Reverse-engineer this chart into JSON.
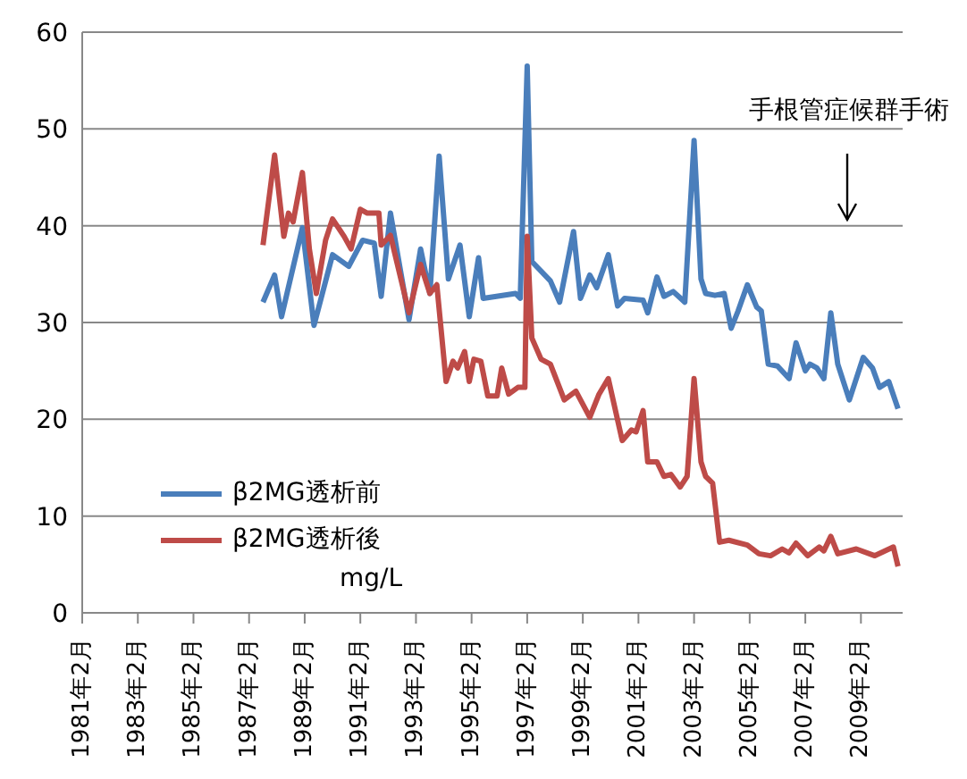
{
  "chart_data": {
    "type": "line",
    "xlim": [
      "1981-02",
      "2010-08"
    ],
    "xticks": [
      {
        "value": "1981-02",
        "label": "1981年2月"
      },
      {
        "value": "1983-02",
        "label": "1983年2月"
      },
      {
        "value": "1985-02",
        "label": "1985年2月"
      },
      {
        "value": "1987-02",
        "label": "1987年2月"
      },
      {
        "value": "1989-02",
        "label": "1989年2月"
      },
      {
        "value": "1991-02",
        "label": "1991年2月"
      },
      {
        "value": "1993-02",
        "label": "1993年2月"
      },
      {
        "value": "1995-02",
        "label": "1995年2月"
      },
      {
        "value": "1997-02",
        "label": "1997年2月"
      },
      {
        "value": "1999-02",
        "label": "1999年2月"
      },
      {
        "value": "2001-02",
        "label": "2001年2月"
      },
      {
        "value": "2003-02",
        "label": "2003年2月"
      },
      {
        "value": "2005-02",
        "label": "2005年2月"
      },
      {
        "value": "2007-02",
        "label": "2007年2月"
      },
      {
        "value": "2009-02",
        "label": "2009年2月"
      }
    ],
    "ylim": [
      0,
      60
    ],
    "yticks": [
      0,
      10,
      20,
      30,
      40,
      50,
      60
    ],
    "grid": "y",
    "legend": "bottom left",
    "marker": "none",
    "line_style": "solid",
    "annotations": [
      "手根管症候群手術",
      "mg/L"
    ],
    "series": [
      {
        "name": "β2MG透析前",
        "color": "#4a7ebb",
        "x": [
          "1987-08",
          "1988-01",
          "1988-04",
          "1989-01",
          "1989-06",
          "1990-02",
          "1990-09",
          "1991-03",
          "1991-08",
          "1991-11",
          "1992-03",
          "1992-11",
          "1993-04",
          "1993-08",
          "1993-12",
          "1994-04",
          "1994-09",
          "1995-01",
          "1995-05",
          "1995-07",
          "1996-09",
          "1996-11",
          "1997-02",
          "1997-04",
          "1997-12",
          "1998-04",
          "1998-10",
          "1999-01",
          "1999-05",
          "1999-08",
          "2000-01",
          "2000-05",
          "2000-08",
          "2001-04",
          "2001-06",
          "2001-10",
          "2002-01",
          "2002-05",
          "2002-10",
          "2003-02",
          "2003-05",
          "2003-07",
          "2003-11",
          "2004-03",
          "2004-06",
          "2004-09",
          "2005-01",
          "2005-05",
          "2005-07",
          "2005-10",
          "2006-02",
          "2006-07",
          "2006-10",
          "2007-02",
          "2007-04",
          "2007-07",
          "2007-10",
          "2008-01",
          "2008-04",
          "2008-09",
          "2009-03",
          "2009-07",
          "2009-10",
          "2010-02",
          "2010-06"
        ],
        "values": [
          32.1,
          34.9,
          30.6,
          39.8,
          29.7,
          37,
          35.8,
          38.5,
          38.2,
          32.7,
          41.3,
          30.3,
          37.6,
          33,
          47.2,
          34.5,
          38,
          30.6,
          36.7,
          32.5,
          33,
          32.5,
          56.5,
          36.3,
          34.3,
          32.1,
          39.4,
          32.5,
          34.9,
          33.6,
          37,
          31.7,
          32.5,
          32.3,
          31,
          34.7,
          32.7,
          33.2,
          32.1,
          48.8,
          34.5,
          33,
          32.8,
          33,
          29.4,
          31.2,
          33.9,
          31.6,
          31.2,
          25.7,
          25.5,
          24.2,
          27.9,
          25,
          25.7,
          25.3,
          24.2,
          31,
          25.7,
          22,
          26.4,
          25.3,
          23.3,
          23.9,
          21.1
        ]
      },
      {
        "name": "β2MG透析後",
        "color": "#be4b48",
        "x": [
          "1987-08",
          "1988-01",
          "1988-05",
          "1988-07",
          "1988-09",
          "1989-01",
          "1989-04",
          "1989-07",
          "1989-11",
          "1990-02",
          "1990-07",
          "1990-10",
          "1991-02",
          "1991-05",
          "1991-10",
          "1991-11",
          "1992-03",
          "1992-11",
          "1993-04",
          "1993-08",
          "1993-11",
          "1994-03",
          "1994-06",
          "1994-08",
          "1994-11",
          "1995-01",
          "1995-03",
          "1995-06",
          "1995-09",
          "1996-01",
          "1996-03",
          "1996-06",
          "1996-10",
          "1997-01",
          "1997-02",
          "1997-04",
          "1997-08",
          "1997-12",
          "1998-06",
          "1998-11",
          "1999-05",
          "1999-09",
          "2000-01",
          "2000-07",
          "2000-11",
          "2001-01",
          "2001-04",
          "2001-06",
          "2001-10",
          "2002-01",
          "2002-04",
          "2002-08",
          "2002-11",
          "2003-02",
          "2003-05",
          "2003-07",
          "2003-10",
          "2004-01",
          "2004-05",
          "2005-01",
          "2005-06",
          "2005-11",
          "2006-04",
          "2006-07",
          "2006-10",
          "2007-03",
          "2007-08",
          "2007-10",
          "2008-01",
          "2008-04",
          "2008-12",
          "2009-08",
          "2010-04",
          "2010-06"
        ],
        "values": [
          38,
          47.3,
          38.9,
          41.3,
          40.4,
          45.5,
          37.6,
          33,
          38.5,
          40.7,
          38.9,
          37.6,
          41.7,
          41.3,
          41.3,
          38,
          39,
          31,
          36,
          33,
          33.9,
          23.9,
          26,
          25.3,
          27,
          23.9,
          26.2,
          26,
          22.4,
          22.4,
          25.3,
          22.6,
          23.3,
          23.3,
          38.9,
          28.4,
          26.2,
          25.7,
          22,
          22.9,
          20.2,
          22.6,
          24.2,
          17.8,
          18.9,
          18.7,
          20.9,
          15.6,
          15.6,
          14.1,
          14.3,
          13,
          14.1,
          24.2,
          15.6,
          14.1,
          13.4,
          7.3,
          7.5,
          7,
          6.1,
          5.9,
          6.6,
          6.2,
          7.2,
          5.9,
          6.8,
          6.4,
          7.9,
          6.1,
          6.6,
          5.9,
          6.8,
          4.8
        ]
      }
    ]
  }
}
